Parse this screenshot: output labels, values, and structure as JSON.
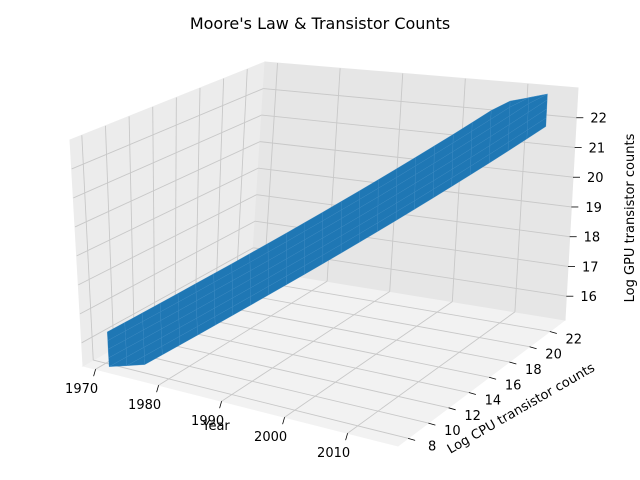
{
  "chart_data": {
    "type": "surface3d",
    "title": "Moore's Law & Transistor Counts",
    "xlabel": "Year",
    "ylabel": "Log CPU transistor counts",
    "zlabel": "Log GPU transistor counts",
    "xlim": [
      1968,
      2018
    ],
    "ylim": [
      7,
      23.5
    ],
    "zlim": [
      15.2,
      23
    ],
    "x_ticks": [
      1970,
      1980,
      1990,
      2000,
      2010
    ],
    "y_ticks": [
      8,
      10,
      12,
      14,
      16,
      18,
      20,
      22
    ],
    "z_ticks": [
      16,
      17,
      18,
      19,
      20,
      21,
      22
    ],
    "grid": true,
    "surface_color": "#1f77b4",
    "x_range_years": [
      1971,
      2015
    ],
    "y_range_log_cpu": [
      7.7,
      22.5
    ],
    "z_range_log_gpu": [
      15.5,
      22.8
    ]
  }
}
